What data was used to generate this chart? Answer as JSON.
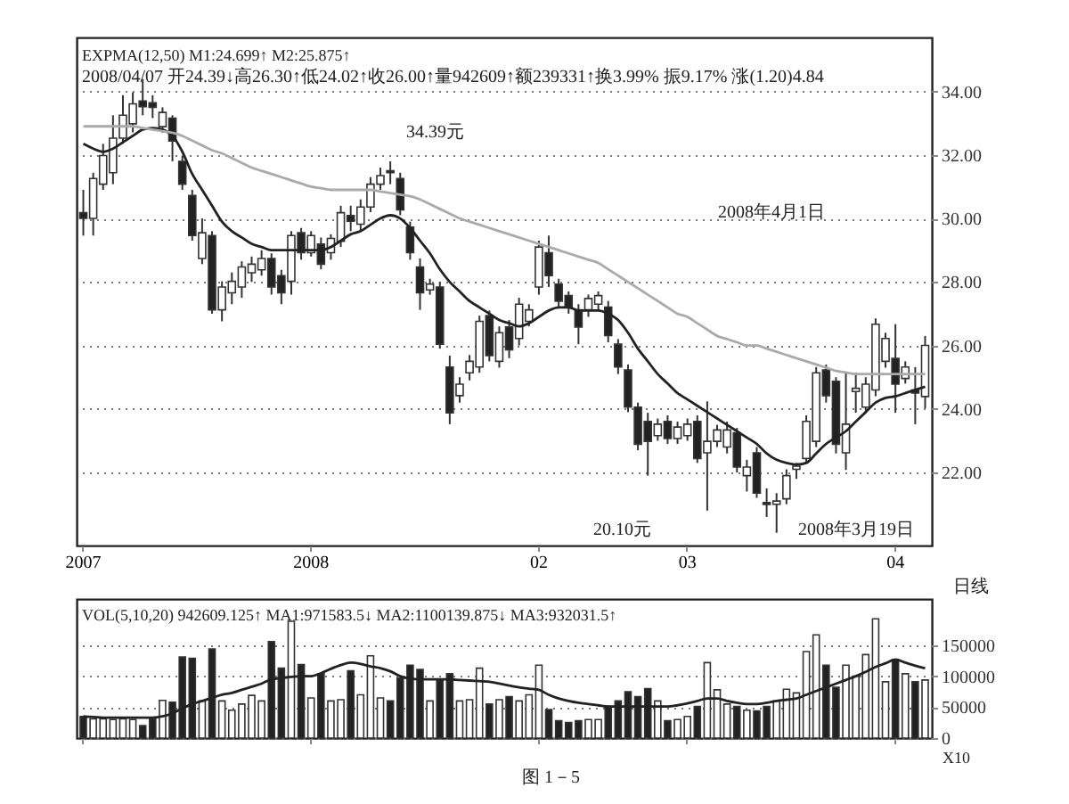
{
  "chart_data": [
    {
      "type": "candlestick",
      "categories": [
        "2007",
        null,
        null,
        null,
        null,
        null,
        null,
        null,
        null,
        null,
        null,
        null,
        null,
        null,
        null,
        null,
        null,
        null,
        null,
        null,
        null,
        null,
        null,
        "2008",
        null,
        null,
        null,
        null,
        null,
        null,
        null,
        null,
        null,
        null,
        null,
        null,
        null,
        null,
        null,
        null,
        null,
        null,
        null,
        null,
        null,
        null,
        "02",
        null,
        null,
        null,
        null,
        null,
        null,
        null,
        null,
        null,
        null,
        null,
        null,
        null,
        null,
        "03",
        null,
        null,
        null,
        null,
        null,
        null,
        null,
        null,
        null,
        null,
        null,
        null,
        null,
        null,
        null,
        null,
        null,
        null,
        null,
        null,
        "04",
        null,
        null,
        null
      ],
      "ohlc": [
        [
          30.18,
          30.9,
          29.46,
          30.0
        ],
        [
          30.0,
          31.44,
          29.46,
          31.26
        ],
        [
          31.08,
          32.35,
          30.9,
          31.98
        ],
        [
          31.44,
          33.25,
          31.08,
          32.53
        ],
        [
          32.53,
          33.88,
          32.35,
          33.25
        ],
        [
          32.98,
          33.97,
          32.71,
          33.61
        ],
        [
          33.7,
          34.39,
          33.25,
          33.52
        ],
        [
          33.64,
          33.88,
          33.16,
          33.5
        ],
        [
          32.89,
          33.5,
          32.7,
          33.34
        ],
        [
          33.16,
          33.25,
          31.8,
          32.44
        ],
        [
          31.8,
          31.98,
          30.9,
          31.08
        ],
        [
          30.72,
          30.9,
          29.3,
          29.46
        ],
        [
          28.74,
          30.0,
          28.56,
          29.55
        ],
        [
          29.46,
          29.6,
          27.0,
          27.12
        ],
        [
          27.12,
          28.02,
          26.76,
          27.84
        ],
        [
          27.66,
          28.3,
          27.3,
          28.02
        ],
        [
          27.84,
          28.65,
          27.5,
          28.47
        ],
        [
          28.29,
          28.8,
          28.0,
          28.56
        ],
        [
          28.38,
          29.0,
          28.2,
          28.74
        ],
        [
          28.74,
          28.9,
          27.6,
          27.84
        ],
        [
          28.2,
          28.38,
          27.3,
          27.66
        ],
        [
          28.02,
          29.6,
          27.6,
          29.46
        ],
        [
          29.55,
          29.7,
          28.7,
          28.92
        ],
        [
          28.92,
          29.6,
          28.8,
          29.46
        ],
        [
          29.19,
          29.4,
          28.4,
          28.56
        ],
        [
          28.92,
          29.5,
          28.7,
          29.37
        ],
        [
          29.28,
          30.4,
          29.1,
          30.18
        ],
        [
          30.09,
          30.4,
          29.6,
          29.91
        ],
        [
          29.82,
          30.6,
          29.6,
          30.36
        ],
        [
          30.36,
          31.3,
          30.2,
          31.08
        ],
        [
          31.08,
          31.6,
          30.9,
          31.35
        ],
        [
          31.5,
          31.8,
          31.08,
          31.44
        ],
        [
          31.26,
          31.44,
          30.1,
          30.27
        ],
        [
          29.73,
          29.9,
          28.7,
          28.92
        ],
        [
          28.47,
          28.74,
          27.12,
          27.66
        ],
        [
          27.75,
          28.1,
          27.6,
          27.93
        ],
        [
          27.84,
          28.0,
          25.9,
          26.04
        ],
        [
          25.32,
          25.68,
          23.52,
          23.88
        ],
        [
          24.42,
          25.0,
          24.2,
          24.78
        ],
        [
          25.14,
          25.7,
          24.9,
          25.5
        ],
        [
          25.32,
          26.94,
          25.14,
          26.76
        ],
        [
          26.94,
          27.1,
          25.5,
          25.68
        ],
        [
          25.5,
          26.6,
          25.3,
          26.4
        ],
        [
          26.58,
          26.8,
          25.6,
          25.86
        ],
        [
          26.22,
          27.5,
          26.0,
          27.3
        ],
        [
          26.76,
          27.3,
          26.6,
          27.12
        ],
        [
          27.84,
          29.3,
          27.6,
          29.1
        ],
        [
          28.92,
          29.46,
          27.84,
          28.2
        ],
        [
          27.93,
          28.1,
          27.2,
          27.39
        ],
        [
          27.57,
          27.7,
          27.0,
          27.21
        ],
        [
          27.12,
          27.3,
          26.04,
          26.58
        ],
        [
          27.12,
          27.6,
          26.9,
          27.48
        ],
        [
          27.3,
          27.7,
          27.1,
          27.57
        ],
        [
          27.21,
          27.4,
          26.1,
          26.31
        ],
        [
          26.04,
          26.2,
          25.1,
          25.32
        ],
        [
          25.23,
          25.4,
          23.9,
          24.06
        ],
        [
          24.06,
          24.2,
          22.7,
          22.89
        ],
        [
          23.61,
          23.88,
          21.9,
          22.98
        ],
        [
          23.16,
          23.7,
          23.0,
          23.52
        ],
        [
          23.61,
          23.8,
          22.9,
          23.07
        ],
        [
          23.07,
          23.6,
          22.9,
          23.43
        ],
        [
          23.16,
          23.7,
          23.0,
          23.52
        ],
        [
          23.61,
          23.8,
          22.3,
          22.44
        ],
        [
          22.62,
          24.24,
          20.8,
          22.98
        ],
        [
          22.98,
          23.5,
          22.8,
          23.34
        ],
        [
          22.8,
          23.6,
          22.6,
          23.34
        ],
        [
          23.25,
          23.4,
          22.0,
          22.17
        ],
        [
          21.9,
          22.4,
          21.4,
          22.17
        ],
        [
          22.62,
          22.8,
          21.2,
          21.35
        ],
        [
          21.05,
          21.5,
          20.6,
          20.99
        ],
        [
          21.0,
          21.35,
          20.1,
          21.1
        ],
        [
          21.17,
          22.1,
          21.0,
          21.9
        ],
        [
          22.1,
          22.3,
          21.8,
          22.2
        ],
        [
          22.44,
          23.8,
          22.3,
          23.61
        ],
        [
          22.98,
          25.32,
          22.8,
          25.14
        ],
        [
          25.23,
          25.4,
          24.2,
          24.42
        ],
        [
          24.87,
          25.0,
          22.6,
          22.89
        ],
        [
          22.62,
          25.14,
          22.08,
          23.52
        ],
        [
          24.55,
          25.14,
          23.88,
          24.65
        ],
        [
          24.06,
          25.0,
          23.9,
          24.78
        ],
        [
          24.6,
          26.85,
          24.4,
          26.67
        ],
        [
          25.5,
          26.4,
          25.3,
          26.22
        ],
        [
          25.59,
          26.67,
          23.88,
          24.78
        ],
        [
          24.96,
          25.5,
          24.8,
          25.32
        ],
        [
          24.6,
          25.32,
          23.52,
          24.5
        ],
        [
          24.39,
          26.3,
          24.02,
          26.0
        ]
      ],
      "colors": [
        "#222222",
        "#ffffff",
        "#ffffff",
        "#ffffff",
        "#ffffff",
        "#ffffff",
        "#222222",
        "#222222",
        "#ffffff",
        "#222222",
        "#222222",
        "#222222",
        "#ffffff",
        "#222222",
        "#ffffff",
        "#ffffff",
        "#ffffff",
        "#ffffff",
        "#ffffff",
        "#222222",
        "#222222",
        "#ffffff",
        "#222222",
        "#ffffff",
        "#222222",
        "#ffffff",
        "#ffffff",
        "#222222",
        "#ffffff",
        "#ffffff",
        "#ffffff",
        "#222222",
        "#222222",
        "#222222",
        "#222222",
        "#ffffff",
        "#222222",
        "#222222",
        "#ffffff",
        "#ffffff",
        "#ffffff",
        "#222222",
        "#ffffff",
        "#222222",
        "#ffffff",
        "#ffffff",
        "#ffffff",
        "#222222",
        "#222222",
        "#222222",
        "#222222",
        "#ffffff",
        "#ffffff",
        "#222222",
        "#222222",
        "#222222",
        "#222222",
        "#222222",
        "#ffffff",
        "#222222",
        "#ffffff",
        "#ffffff",
        "#222222",
        "#ffffff",
        "#ffffff",
        "#ffffff",
        "#222222",
        "#ffffff",
        "#222222",
        "#222222",
        "#ffffff",
        "#ffffff",
        "#ffffff",
        "#ffffff",
        "#ffffff",
        "#222222",
        "#222222",
        "#ffffff",
        "#ffffff",
        "#ffffff",
        "#ffffff",
        "#ffffff",
        "#222222",
        "#ffffff",
        "#222222",
        "#ffffff"
      ],
      "series": [
        {
          "type": "line",
          "color": "#222222",
          "values": [
            32.35,
            32.2,
            32.1,
            32.2,
            32.4,
            32.6,
            32.8,
            32.85,
            32.8,
            32.6,
            32.1,
            31.4,
            30.9,
            30.4,
            29.9,
            29.6,
            29.4,
            29.2,
            29.1,
            29.0,
            29.0,
            29.0,
            29.0,
            29.0,
            29.0,
            29.1,
            29.3,
            29.5,
            29.6,
            29.8,
            30.0,
            30.1,
            30.0,
            29.7,
            29.3,
            28.9,
            28.4,
            28.0,
            27.7,
            27.4,
            27.2,
            27.0,
            26.8,
            26.7,
            26.6,
            26.7,
            26.9,
            27.1,
            27.2,
            27.2,
            27.1,
            27.1,
            27.1,
            27.0,
            26.8,
            26.4,
            25.9,
            25.5,
            25.1,
            24.8,
            24.5,
            24.3,
            24.1,
            23.9,
            23.7,
            23.5,
            23.3,
            23.1,
            22.9,
            22.6,
            22.4,
            22.3,
            22.25,
            22.3,
            22.6,
            22.9,
            23.1,
            23.3,
            23.6,
            23.9,
            24.2,
            24.35,
            24.4,
            24.5,
            24.6,
            24.7
          ]
        },
        {
          "type": "line",
          "color": "#aaaaaa",
          "values": [
            32.9,
            32.9,
            32.9,
            32.9,
            32.9,
            32.9,
            32.85,
            32.8,
            32.75,
            32.7,
            32.6,
            32.45,
            32.3,
            32.15,
            32.05,
            31.9,
            31.75,
            31.6,
            31.5,
            31.4,
            31.3,
            31.2,
            31.1,
            31.0,
            30.95,
            30.9,
            30.9,
            30.9,
            30.9,
            30.9,
            30.85,
            30.8,
            30.75,
            30.7,
            30.6,
            30.45,
            30.3,
            30.15,
            30.0,
            29.9,
            29.8,
            29.7,
            29.6,
            29.5,
            29.4,
            29.3,
            29.2,
            29.1,
            29.0,
            28.9,
            28.8,
            28.7,
            28.6,
            28.4,
            28.2,
            28.0,
            27.8,
            27.6,
            27.4,
            27.2,
            27.0,
            26.9,
            26.7,
            26.5,
            26.3,
            26.2,
            26.1,
            26.0,
            26.0,
            25.9,
            25.8,
            25.7,
            25.6,
            25.5,
            25.4,
            25.3,
            25.2,
            25.15,
            25.1,
            25.1,
            25.1,
            25.1,
            25.1,
            25.1,
            25.1,
            25.1
          ]
        }
      ],
      "ylim": [
        19.7,
        35.7
      ],
      "yticks": [
        {
          "value": 22,
          "label": "22.00"
        },
        {
          "value": 24,
          "label": "24.00"
        },
        {
          "value": 26,
          "label": "26.00"
        },
        {
          "value": 28,
          "label": "28.00"
        },
        {
          "value": 30,
          "label": "30.00"
        },
        {
          "value": 32,
          "label": "32.00"
        },
        {
          "value": 34,
          "label": "34.00"
        }
      ],
      "grid": "y",
      "annotations": [
        "EXPMA(12,50) M1:24.699↑ M2:25.875↑",
        "2008/04/07 开24.39↓高26.30↑低24.02↑收26.00↑量942609↑额239331↑换3.99% 振9.17% 涨(1.20)4.84",
        "34.39元",
        "20.10元",
        "2008年3月19日",
        "2008年4月1日"
      ]
    },
    {
      "type": "bar",
      "categories": [
        "2007",
        null,
        null,
        null,
        null,
        null,
        null,
        null,
        null,
        null,
        null,
        null,
        null,
        null,
        null,
        null,
        null,
        null,
        null,
        null,
        null,
        null,
        null,
        "2008",
        null,
        null,
        null,
        null,
        null,
        null,
        null,
        null,
        null,
        null,
        null,
        null,
        null,
        null,
        null,
        null,
        null,
        null,
        null,
        null,
        null,
        null,
        "02",
        null,
        null,
        null,
        null,
        null,
        null,
        null,
        null,
        null,
        null,
        null,
        null,
        null,
        null,
        "03",
        null,
        null,
        null,
        null,
        null,
        null,
        null,
        null,
        null,
        null,
        null,
        null,
        null,
        null,
        null,
        null,
        null,
        null,
        null,
        null,
        "04",
        null,
        null,
        null
      ],
      "series": [
        {
          "type": "bar",
          "values": [
            35000,
            31000,
            31000,
            30000,
            31000,
            30000,
            20000,
            31000,
            61000,
            58000,
            131000,
            129000,
            60000,
            144000,
            60000,
            45000,
            55000,
            69000,
            60000,
            156000,
            113000,
            189000,
            119000,
            65000,
            104000,
            60000,
            62000,
            109000,
            70000,
            133000,
            65000,
            60000,
            97000,
            118000,
            111000,
            60000,
            94000,
            104000,
            60000,
            62000,
            113000,
            55000,
            62000,
            67000,
            60000,
            70000,
            118000,
            46000,
            28000,
            25000,
            28000,
            30000,
            30000,
            51000,
            60000,
            75000,
            67000,
            80000,
            60000,
            28000,
            30000,
            35000,
            51000,
            122000,
            78000,
            55000,
            51000,
            45000,
            44000,
            51000,
            60000,
            79000,
            73000,
            140000,
            167000,
            118000,
            82000,
            118000,
            100000,
            135000,
            193000,
            91000,
            127000,
            104000,
            91000,
            94000
          ],
          "colors": [
            "#222222",
            "#ffffff",
            "#ffffff",
            "#ffffff",
            "#ffffff",
            "#ffffff",
            "#222222",
            "#222222",
            "#ffffff",
            "#222222",
            "#222222",
            "#222222",
            "#ffffff",
            "#222222",
            "#ffffff",
            "#ffffff",
            "#ffffff",
            "#ffffff",
            "#ffffff",
            "#222222",
            "#222222",
            "#ffffff",
            "#222222",
            "#ffffff",
            "#222222",
            "#ffffff",
            "#ffffff",
            "#222222",
            "#ffffff",
            "#ffffff",
            "#ffffff",
            "#222222",
            "#222222",
            "#222222",
            "#222222",
            "#ffffff",
            "#222222",
            "#222222",
            "#ffffff",
            "#ffffff",
            "#ffffff",
            "#222222",
            "#ffffff",
            "#222222",
            "#ffffff",
            "#ffffff",
            "#ffffff",
            "#222222",
            "#222222",
            "#222222",
            "#222222",
            "#ffffff",
            "#ffffff",
            "#222222",
            "#222222",
            "#222222",
            "#222222",
            "#222222",
            "#ffffff",
            "#222222",
            "#ffffff",
            "#ffffff",
            "#222222",
            "#ffffff",
            "#ffffff",
            "#ffffff",
            "#222222",
            "#ffffff",
            "#222222",
            "#222222",
            "#ffffff",
            "#ffffff",
            "#ffffff",
            "#ffffff",
            "#ffffff",
            "#222222",
            "#222222",
            "#ffffff",
            "#ffffff",
            "#ffffff",
            "#ffffff",
            "#ffffff",
            "#222222",
            "#ffffff",
            "#222222",
            "#ffffff"
          ]
        },
        {
          "type": "line",
          "color": "#222222",
          "values": [
            35000,
            34000,
            33000,
            33000,
            33000,
            33000,
            33000,
            33000,
            35000,
            40000,
            48000,
            55000,
            60000,
            65000,
            70000,
            73000,
            78000,
            83000,
            88000,
            95000,
            97000,
            99000,
            100000,
            100000,
            105000,
            112000,
            118000,
            122000,
            120000,
            116000,
            113000,
            108000,
            100000,
            96000,
            95000,
            95000,
            95000,
            95000,
            94000,
            93000,
            92000,
            91000,
            88000,
            85000,
            82000,
            80000,
            78000,
            70000,
            64000,
            60000,
            57000,
            55000,
            53000,
            51000,
            51000,
            51000,
            51000,
            51000,
            51000,
            51000,
            53000,
            56000,
            60000,
            64000,
            64000,
            60000,
            57000,
            55000,
            55000,
            57000,
            60000,
            62000,
            64000,
            70000,
            76000,
            82000,
            88000,
            94000,
            100000,
            107000,
            115000,
            121000,
            127000,
            122000,
            117000,
            113000
          ]
        }
      ],
      "ylim": [
        0,
        225000
      ],
      "yticks": [
        0,
        50000,
        100000,
        150000
      ],
      "grid": "y",
      "tick_labels": "y",
      "annotations": [
        "VOL(5,10,20) 942609.125↑ MA1:971583.5↓ MA2:1100139.875↓ MA3:932031.5↑",
        "X10",
        "日线",
        "图 1－5"
      ]
    }
  ]
}
